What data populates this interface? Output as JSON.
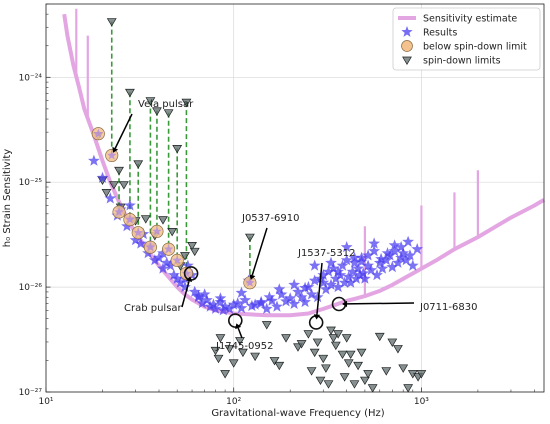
{
  "chart_data": {
    "type": "scatter",
    "xlabel": "Gravitational-wave Frequency (Hz)",
    "ylabel": "h₀ Strain Sensitivity",
    "x_scale": "log",
    "y_scale": "log",
    "xlim": [
      10,
      4500
    ],
    "ylim": [
      1e-27,
      5e-24
    ],
    "grid": true,
    "legend_position": "top-right",
    "x_ticks": [
      {
        "value": 10,
        "label": "10¹"
      },
      {
        "value": 100,
        "label": "10²"
      },
      {
        "value": 1000,
        "label": "10³"
      }
    ],
    "y_ticks": [
      {
        "value": 1e-27,
        "label": "10⁻²⁷"
      },
      {
        "value": 1e-26,
        "label": "10⁻²⁶"
      },
      {
        "value": 1e-25,
        "label": "10⁻²⁵"
      },
      {
        "value": 1e-24,
        "label": "10⁻²⁴"
      }
    ],
    "colors": {
      "sensitivity": "#e3a6e3",
      "results": "#4a3cf0",
      "below_limit": "#f3c28f",
      "spindown": "#5f6b6b",
      "connector": "#3a9a3a"
    },
    "legend": [
      {
        "key": "sensitivity",
        "label": "Sensitivity estimate"
      },
      {
        "key": "results",
        "label": "Results"
      },
      {
        "key": "below_limit",
        "label": "below spin-down limit"
      },
      {
        "key": "spindown",
        "label": "spin-down limits"
      }
    ],
    "series": [
      {
        "name": "Sensitivity estimate",
        "kind": "line",
        "x": [
          12.5,
          13,
          14,
          15,
          16,
          18,
          20,
          22,
          25,
          28,
          30,
          35,
          40,
          45,
          50,
          55,
          60,
          70,
          80,
          90,
          100,
          120,
          150,
          200,
          250,
          300,
          350,
          400,
          450,
          500,
          600,
          700,
          800,
          1000,
          1200,
          1500,
          2000,
          2500,
          3000,
          3500,
          4000,
          4500
        ],
        "y": [
          4e-24,
          2.5e-24,
          1.3e-24,
          8e-25,
          5e-25,
          2.8e-25,
          1.6e-25,
          1e-25,
          6e-26,
          4e-26,
          3.3e-26,
          2.2e-26,
          1.6e-26,
          1.25e-26,
          1e-26,
          8.5e-27,
          7.6e-27,
          6.5e-27,
          6e-27,
          5.8e-27,
          5.6e-27,
          5.5e-27,
          5.4e-27,
          5.4e-27,
          5.6e-27,
          6.2e-27,
          6.8e-27,
          7.4e-27,
          7.8e-27,
          8.2e-27,
          9.2e-27,
          1.05e-26,
          1.2e-26,
          1.5e-26,
          1.8e-26,
          2.3e-26,
          3e-26,
          3.8e-26,
          4.6e-26,
          5.3e-26,
          6e-26,
          6.8e-26
        ],
        "spikes": [
          {
            "x": 14.5,
            "y": 4.5e-24
          },
          {
            "x": 16.7,
            "y": 2.5e-24
          },
          {
            "x": 500,
            "y": 3.8e-26
          },
          {
            "x": 1000,
            "y": 6e-26
          },
          {
            "x": 1500,
            "y": 8e-26
          },
          {
            "x": 2000,
            "y": 1.3e-25
          }
        ]
      },
      {
        "name": "Results",
        "kind": "marker",
        "x": [
          18,
          20,
          22,
          24,
          25,
          27,
          28,
          30,
          32,
          33,
          35,
          36,
          38,
          40,
          42,
          44,
          46,
          48,
          50,
          52,
          55,
          57,
          60,
          62,
          65,
          68,
          70,
          72,
          75,
          78,
          80,
          85,
          88,
          90,
          95,
          100,
          105,
          110,
          115,
          120,
          125,
          130,
          140,
          150,
          155,
          160,
          170,
          180,
          190,
          200,
          210,
          220,
          230,
          240,
          250,
          260,
          270,
          280,
          290,
          300,
          310,
          320,
          330,
          340,
          350,
          360,
          370,
          380,
          390,
          400,
          410,
          420,
          430,
          440,
          450,
          460,
          470,
          480,
          490,
          500,
          520,
          540,
          560,
          580,
          600,
          620,
          650,
          680,
          700,
          720,
          750,
          780,
          800,
          830,
          870,
          900,
          950,
          28,
          36,
          42,
          55,
          65,
          85,
          110,
          140,
          175,
          210,
          240,
          270,
          300,
          330,
          360,
          400,
          440,
          480,
          520,
          560,
          610,
          660,
          720,
          780,
          850
        ],
        "y": [
          1.6e-25,
          1.1e-25,
          7e-26,
          4.8e-26,
          5.5e-26,
          3.8e-26,
          4.5e-26,
          2.8e-26,
          2.6e-26,
          3.2e-26,
          2.1e-26,
          2.5e-26,
          1.8e-26,
          1.9e-26,
          1.5e-26,
          1.7e-26,
          1.6e-26,
          1.3e-26,
          1.2e-26,
          1.1e-26,
          1e-26,
          1.6e-26,
          1.3e-26,
          9e-27,
          8e-27,
          7e-27,
          8.5e-27,
          7.5e-27,
          6.5e-27,
          6.8e-27,
          6.2e-27,
          7.2e-27,
          6e-27,
          6.5e-27,
          6.2e-27,
          6.8e-27,
          7e-27,
          6.3e-27,
          7.5e-27,
          1.15e-26,
          6.6e-27,
          6.8e-27,
          7.2e-27,
          6.2e-27,
          8e-27,
          7.4e-27,
          6.5e-27,
          8.5e-27,
          7.3e-27,
          7.8e-27,
          6.9e-27,
          9e-27,
          8e-27,
          7.2e-27,
          1e-26,
          8.5e-27,
          1.15e-26,
          8e-27,
          1.2e-26,
          1.3e-26,
          9.5e-27,
          1.4e-26,
          1.05e-26,
          1.5e-26,
          1.2e-26,
          1e-26,
          1.3e-26,
          1.6e-26,
          1.1e-26,
          1.8e-26,
          1.25e-26,
          1.1e-26,
          1.4e-26,
          1.7e-26,
          1.2e-26,
          1.5e-26,
          1.3e-26,
          1.9e-26,
          1.35e-26,
          1.2e-26,
          1.6e-26,
          1.45e-26,
          2.2e-26,
          1.3e-26,
          1.7e-26,
          1.5e-26,
          1.8e-26,
          2e-26,
          1.55e-26,
          2.5e-26,
          1.7e-26,
          1.9e-26,
          2.1e-26,
          1.8e-26,
          2e-26,
          1.6e-26,
          2.3e-26,
          6e-26,
          2.4e-26,
          2.1e-26,
          1.2e-26,
          8.2e-27,
          7.8e-27,
          8.8e-27,
          7e-27,
          9.5e-27,
          1.05e-26,
          9.8e-27,
          1.6e-26,
          1.1e-26,
          1.7e-26,
          1.4e-26,
          2.4e-26,
          1.9e-26,
          1.75e-26,
          2e-26,
          2.6e-26,
          1.85e-26,
          2.1e-26,
          2.2e-26,
          2.4e-26,
          2.7e-26
        ]
      },
      {
        "name": "below spin-down limit",
        "kind": "marker",
        "x": [
          19,
          22.4,
          24.5,
          28,
          31,
          36,
          39,
          45,
          50,
          56,
          122
        ],
        "y": [
          2.9e-25,
          1.8e-25,
          5.2e-26,
          4.4e-26,
          3.3e-26,
          2.4e-26,
          3.4e-26,
          2.3e-26,
          1.8e-26,
          1.35e-26,
          1.1e-26
        ]
      },
      {
        "name": "spin-down limits",
        "kind": "marker",
        "x": [
          19,
          22.4,
          24.5,
          28,
          31,
          36,
          39,
          45,
          50,
          56,
          122,
          20,
          21,
          23,
          25,
          26,
          30,
          34,
          38,
          42,
          47,
          52,
          55,
          60,
          62,
          80,
          83,
          85,
          90,
          95,
          100,
          108,
          112,
          130,
          150,
          165,
          175,
          190,
          220,
          230,
          250,
          260,
          270,
          280,
          290,
          300,
          310,
          320,
          330,
          340,
          350,
          360,
          380,
          390,
          400,
          410,
          420,
          440,
          460,
          480,
          500,
          520,
          550,
          600,
          650,
          700,
          750,
          800,
          850,
          900,
          960,
          1000
        ],
        "y": [
          2.8e-25,
          3.4e-24,
          1.3e-25,
          7.2e-25,
          1.5e-25,
          6e-25,
          4.8e-25,
          4.6e-25,
          2.1e-25,
          5.8e-25,
          3e-26,
          1.05e-25,
          8e-26,
          9.5e-26,
          5.8e-26,
          9.5e-26,
          4.3e-26,
          4.5e-26,
          3.1e-26,
          4.4e-26,
          3.4e-26,
          1.6e-26,
          2e-26,
          2.5e-26,
          2.2e-26,
          2.5e-27,
          2.1e-27,
          3.3e-27,
          1.5e-27,
          2.6e-27,
          1.9e-27,
          3.1e-27,
          2.4e-27,
          2.2e-27,
          4.4e-27,
          2e-27,
          1.8e-27,
          3.3e-27,
          2.7e-27,
          2.9e-27,
          3.6e-27,
          1.6e-27,
          2.4e-27,
          3e-27,
          1.3e-27,
          2.1e-27,
          1.7e-27,
          1.2e-27,
          3.9e-27,
          3.3e-27,
          2.8e-27,
          3.6e-27,
          2.3e-27,
          1.4e-27,
          3.3e-27,
          1.9e-27,
          2.3e-27,
          1.2e-27,
          1.8e-27,
          2.4e-27,
          1.3e-27,
          1.5e-27,
          1.1e-27,
          3.4e-27,
          1.6e-27,
          3e-27,
          2.6e-27,
          1.7e-27,
          1.1e-27,
          1.5e-27,
          1.4e-27,
          1.5e-27
        ]
      }
    ],
    "annotations": [
      {
        "text": "Vela pulsar",
        "target_x": 22.4,
        "target_y": 1.8e-25,
        "circled": false
      },
      {
        "text": "J0537-6910",
        "target_x": 122,
        "target_y": 1.1e-26,
        "circled": false
      },
      {
        "text": "J1537-5312",
        "target_x": 275,
        "target_y": 4.6e-27,
        "circled": true
      },
      {
        "text": "J0711-6830",
        "target_x": 364,
        "target_y": 6.9e-27,
        "circled": true
      },
      {
        "text": "Crab pulsar",
        "target_x": 59.3,
        "target_y": 1.35e-26,
        "circled": true
      },
      {
        "text": "J1745-0952",
        "target_x": 102,
        "target_y": 4.8e-27,
        "circled": true
      }
    ]
  }
}
